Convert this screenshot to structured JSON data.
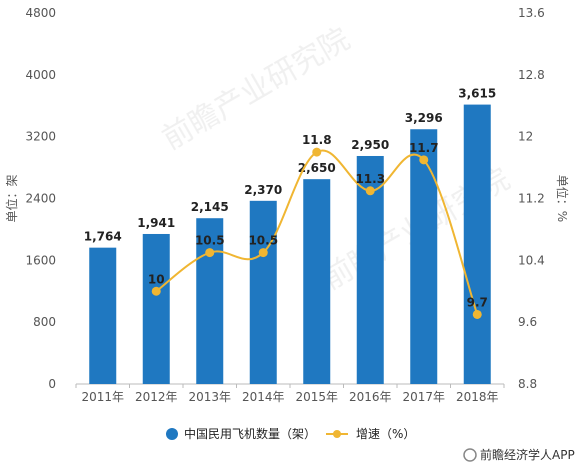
{
  "chart_data": {
    "type": "bar",
    "categories": [
      "2011年",
      "2012年",
      "2013年",
      "2014年",
      "2015年",
      "2016年",
      "2017年",
      "2018年"
    ],
    "series": [
      {
        "name": "中国民用飞机数量（架）",
        "type": "bar",
        "axis": "left",
        "values": [
          1764,
          1941,
          2145,
          2370,
          2650,
          2950,
          3296,
          3615
        ],
        "labels": [
          "1,764",
          "1,941",
          "2,145",
          "2,370",
          "2,650",
          "2,950",
          "3,296",
          "3,615"
        ]
      },
      {
        "name": "增速（%）",
        "type": "line",
        "axis": "right",
        "values": [
          null,
          10,
          10.5,
          10.5,
          11.8,
          11.3,
          11.7,
          9.7
        ],
        "labels": [
          "",
          "10",
          "10.5",
          "10.5",
          "11.8",
          "11.3",
          "11.7",
          "9.7"
        ]
      }
    ],
    "ylabel": "单位：架",
    "ylabel_right": "单位：%",
    "ylim": [
      0,
      4800
    ],
    "yticks": [
      "0",
      "800",
      "1600",
      "2400",
      "3200",
      "4000",
      "4800"
    ],
    "ylim_right": [
      8.8,
      13.6
    ],
    "yticks_right": [
      "8.8",
      "9.6",
      "10.4",
      "11.2",
      "12",
      "12.8",
      "13.6"
    ],
    "grid": false,
    "legend": "bottom",
    "colors": {
      "bar": "#1f78c1",
      "line": "#f0b632"
    }
  },
  "source": "前瞻经济学人APP"
}
